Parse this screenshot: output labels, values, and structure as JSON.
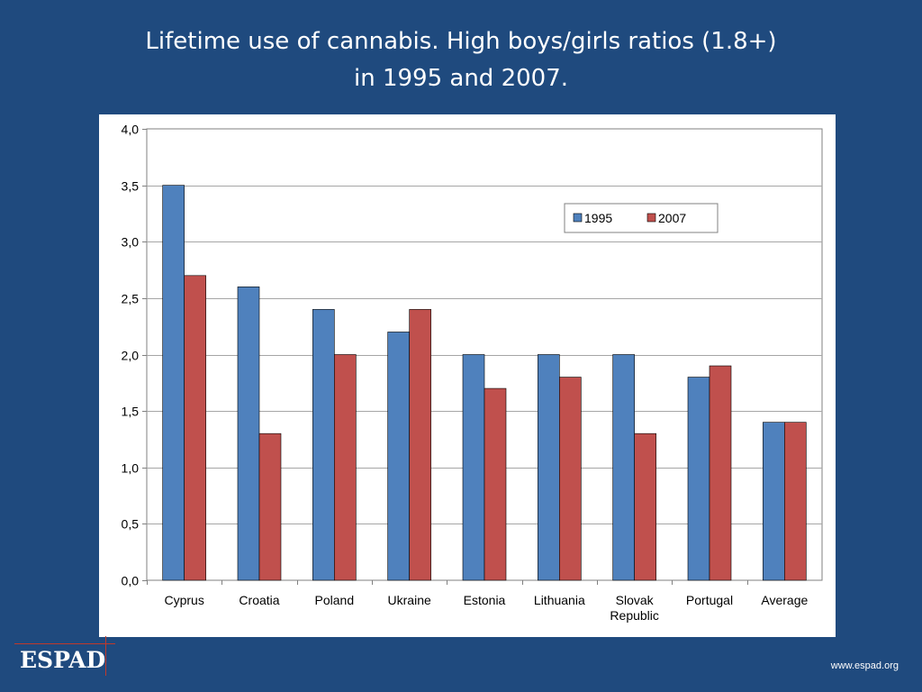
{
  "title": {
    "line1": "Lifetime use of cannabis. High boys/girls ratios (1.8+)",
    "line2": "in 1995 and 2007."
  },
  "footer": {
    "logo": "ESPAD",
    "website": "www.espad.org"
  },
  "colors": {
    "background": "#1f4a7e",
    "series_1995": "#4f81bd",
    "series_2007": "#c0504d"
  },
  "chart_data": {
    "type": "bar",
    "categories": [
      "Cyprus",
      "Croatia",
      "Poland",
      "Ukraine",
      "Estonia",
      "Lithuania",
      "Slovak Republic",
      "Portugal",
      "Average"
    ],
    "category_lines": [
      [
        "Cyprus"
      ],
      [
        "Croatia"
      ],
      [
        "Poland"
      ],
      [
        "Ukraine"
      ],
      [
        "Estonia"
      ],
      [
        "Lithuania"
      ],
      [
        "Slovak",
        "Republic"
      ],
      [
        "Portugal"
      ],
      [
        "Average"
      ]
    ],
    "series": [
      {
        "name": "1995",
        "values": [
          3.5,
          2.6,
          2.4,
          2.2,
          2.0,
          2.0,
          2.0,
          1.8,
          1.4
        ]
      },
      {
        "name": "2007",
        "values": [
          2.7,
          1.3,
          2.0,
          2.4,
          1.7,
          1.8,
          1.3,
          1.9,
          1.4
        ]
      }
    ],
    "yticks": [
      "0,0",
      "0,5",
      "1,0",
      "1,5",
      "2,0",
      "2,5",
      "3,0",
      "3,5",
      "4,0"
    ],
    "ylim": [
      0,
      4
    ],
    "grid": true,
    "legend_position": "top-right"
  }
}
